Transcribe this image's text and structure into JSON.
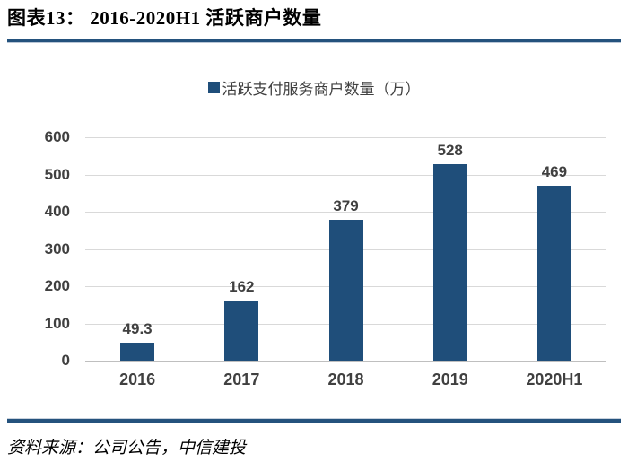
{
  "title": "图表13：  2016-2020H1 活跃商户数量",
  "legend": {
    "label": "活跃支付服务商户数量（万）",
    "marker_color": "#1F4E7A"
  },
  "footer": {
    "source": "资料来源：公司公告，中信建投"
  },
  "colors": {
    "bar": "#1F4E7A",
    "rule": "#24527D",
    "gridline": "#D9D9D9",
    "axis_line": "#BFBFBF",
    "tick_label": "#404040"
  },
  "chart_data": {
    "type": "bar",
    "title": "2016-2020H1 活跃商户数量",
    "categories": [
      "2016",
      "2017",
      "2018",
      "2019",
      "2020H1"
    ],
    "values": [
      49.3,
      162,
      379,
      528,
      469
    ],
    "data_labels": [
      "49.3",
      "162",
      "379",
      "528",
      "469"
    ],
    "series_name": "活跃支付服务商户数量（万）",
    "xlabel": "",
    "ylabel": "",
    "ylim": [
      0,
      600
    ],
    "ytick_step": 100,
    "grid": true,
    "legend_position": "top",
    "bar_color": "#1F4E7A"
  }
}
